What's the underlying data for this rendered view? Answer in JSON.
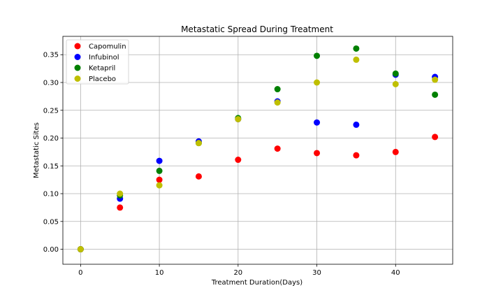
{
  "chart_data": {
    "type": "scatter",
    "title": "Metastatic Spread During Treatment",
    "xlabel": "Treatment Duration(Days)",
    "ylabel": "Metastatic Sites",
    "xlim": [
      -2.25,
      47.25
    ],
    "ylim": [
      -0.027,
      0.383
    ],
    "xticks": [
      0,
      10,
      20,
      30,
      40
    ],
    "xtick_labels": [
      "0",
      "10",
      "20",
      "30",
      "40"
    ],
    "yticks": [
      0.0,
      0.05,
      0.1,
      0.15,
      0.2,
      0.25,
      0.3,
      0.35
    ],
    "ytick_labels": [
      "0.00",
      "0.05",
      "0.10",
      "0.15",
      "0.20",
      "0.25",
      "0.30",
      "0.35"
    ],
    "grid": true,
    "legend_position": "top-left",
    "x": [
      0,
      5,
      10,
      15,
      20,
      25,
      30,
      35,
      40,
      45
    ],
    "series": [
      {
        "name": "Capomulin",
        "color": "#ff0000",
        "values": [
          0.0,
          0.075,
          0.125,
          0.131,
          0.161,
          0.181,
          0.173,
          0.169,
          0.175,
          0.202
        ]
      },
      {
        "name": "Infubinol",
        "color": "#0000ff",
        "values": [
          0.0,
          0.091,
          0.159,
          0.194,
          0.234,
          0.266,
          0.228,
          0.224,
          0.314,
          0.31
        ]
      },
      {
        "name": "Ketapril",
        "color": "#008000",
        "values": [
          0.0,
          0.097,
          0.141,
          0.191,
          0.236,
          0.288,
          0.348,
          0.361,
          0.316,
          0.278
        ]
      },
      {
        "name": "Placebo",
        "color": "#bfbf00",
        "values": [
          0.0,
          0.1,
          0.115,
          0.191,
          0.234,
          0.264,
          0.3,
          0.341,
          0.297,
          0.305
        ]
      }
    ]
  }
}
